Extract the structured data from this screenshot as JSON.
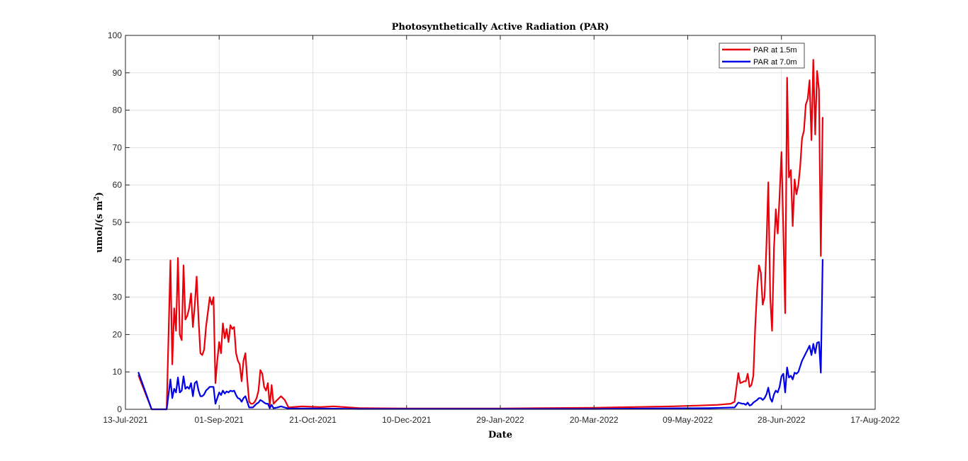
{
  "chart_data": {
    "type": "line",
    "title": "Photosynthetically Active Radiation (PAR)",
    "xlabel": "Date",
    "ylabel": "umol/(s m2)",
    "ylabel_main": "umol/(s m",
    "ylabel_sup": "2",
    "ylabel_close": ")",
    "xlim": [
      "2021-07-13",
      "2022-08-17"
    ],
    "ylim": [
      0,
      100
    ],
    "xticks": [
      "2021-07-13",
      "2021-09-01",
      "2021-10-21",
      "2021-12-10",
      "2022-01-29",
      "2022-03-20",
      "2022-05-09",
      "2022-06-28",
      "2022-08-17"
    ],
    "xtick_labels": [
      "13-Jul-2021",
      "01-Sep-2021",
      "21-Oct-2021",
      "10-Dec-2021",
      "29-Jan-2022",
      "20-Mar-2022",
      "09-May-2022",
      "28-Jun-2022",
      "17-Aug-2022"
    ],
    "yticks": [
      0,
      10,
      20,
      30,
      40,
      50,
      60,
      70,
      80,
      90,
      100
    ],
    "grid": true,
    "legend_position": "top-right",
    "series": [
      {
        "name": "PAR at 1.5m",
        "color": "#e8000b",
        "points": [
          [
            "2021-07-20",
            9
          ],
          [
            "2021-07-27",
            0
          ],
          [
            "2021-08-04",
            0
          ],
          [
            "2021-08-06",
            39.8
          ],
          [
            "2021-08-07",
            12
          ],
          [
            "2021-08-08",
            27
          ],
          [
            "2021-08-09",
            21
          ],
          [
            "2021-08-10",
            40.5
          ],
          [
            "2021-08-11",
            20
          ],
          [
            "2021-08-12",
            18.5
          ],
          [
            "2021-08-13",
            38.5
          ],
          [
            "2021-08-14",
            24
          ],
          [
            "2021-08-15",
            25
          ],
          [
            "2021-08-16",
            27
          ],
          [
            "2021-08-17",
            31
          ],
          [
            "2021-08-18",
            22
          ],
          [
            "2021-08-19",
            28
          ],
          [
            "2021-08-20",
            35.5
          ],
          [
            "2021-08-21",
            24
          ],
          [
            "2021-08-22",
            15
          ],
          [
            "2021-08-23",
            14.5
          ],
          [
            "2021-08-24",
            16
          ],
          [
            "2021-08-25",
            22
          ],
          [
            "2021-08-26",
            26
          ],
          [
            "2021-08-27",
            30
          ],
          [
            "2021-08-28",
            28
          ],
          [
            "2021-08-29",
            30
          ],
          [
            "2021-08-30",
            7
          ],
          [
            "2021-08-31",
            13
          ],
          [
            "2021-09-01",
            18
          ],
          [
            "2021-09-02",
            15
          ],
          [
            "2021-09-03",
            23
          ],
          [
            "2021-09-04",
            19
          ],
          [
            "2021-09-05",
            21.5
          ],
          [
            "2021-09-06",
            18
          ],
          [
            "2021-09-07",
            22.5
          ],
          [
            "2021-09-08",
            21.5
          ],
          [
            "2021-09-09",
            22
          ],
          [
            "2021-09-10",
            15
          ],
          [
            "2021-09-11",
            13
          ],
          [
            "2021-09-12",
            12
          ],
          [
            "2021-09-13",
            7.5
          ],
          [
            "2021-09-14",
            13
          ],
          [
            "2021-09-15",
            15
          ],
          [
            "2021-09-16",
            8
          ],
          [
            "2021-09-17",
            2
          ],
          [
            "2021-09-18",
            1.5
          ],
          [
            "2021-09-19",
            1.5
          ],
          [
            "2021-09-20",
            2
          ],
          [
            "2021-09-21",
            3
          ],
          [
            "2021-09-22",
            5
          ],
          [
            "2021-09-23",
            10.5
          ],
          [
            "2021-09-24",
            9.5
          ],
          [
            "2021-09-25",
            6
          ],
          [
            "2021-09-26",
            5
          ],
          [
            "2021-09-27",
            7
          ],
          [
            "2021-09-28",
            1
          ],
          [
            "2021-09-29",
            6.5
          ],
          [
            "2021-09-30",
            1.5
          ],
          [
            "2021-10-02",
            2.5
          ],
          [
            "2021-10-04",
            3.5
          ],
          [
            "2021-10-06",
            2.5
          ],
          [
            "2021-10-08",
            0.5
          ],
          [
            "2021-10-15",
            0.8
          ],
          [
            "2021-10-25",
            0.6
          ],
          [
            "2021-11-01",
            0.8
          ],
          [
            "2021-11-15",
            0.3
          ],
          [
            "2021-12-10",
            0.2
          ],
          [
            "2022-01-01",
            0.2
          ],
          [
            "2022-01-29",
            0.2
          ],
          [
            "2022-02-20",
            0.3
          ],
          [
            "2022-03-20",
            0.4
          ],
          [
            "2022-04-10",
            0.6
          ],
          [
            "2022-05-01",
            0.8
          ],
          [
            "2022-05-15",
            1.0
          ],
          [
            "2022-05-25",
            1.2
          ],
          [
            "2022-06-01",
            1.5
          ],
          [
            "2022-06-03",
            2
          ],
          [
            "2022-06-05",
            9.7
          ],
          [
            "2022-06-06",
            7
          ],
          [
            "2022-06-07",
            7.2
          ],
          [
            "2022-06-08",
            7.5
          ],
          [
            "2022-06-09",
            7.5
          ],
          [
            "2022-06-10",
            9.5
          ],
          [
            "2022-06-11",
            6
          ],
          [
            "2022-06-12",
            6.5
          ],
          [
            "2022-06-13",
            9
          ],
          [
            "2022-06-14",
            22
          ],
          [
            "2022-06-15",
            32
          ],
          [
            "2022-06-16",
            38.5
          ],
          [
            "2022-06-17",
            36.5
          ],
          [
            "2022-06-18",
            28
          ],
          [
            "2022-06-19",
            30
          ],
          [
            "2022-06-20",
            44
          ],
          [
            "2022-06-21",
            60.7
          ],
          [
            "2022-06-22",
            30
          ],
          [
            "2022-06-23",
            21
          ],
          [
            "2022-06-24",
            43
          ],
          [
            "2022-06-25",
            53.5
          ],
          [
            "2022-06-26",
            47
          ],
          [
            "2022-06-27",
            57
          ],
          [
            "2022-06-28",
            68.8
          ],
          [
            "2022-06-29",
            48
          ],
          [
            "2022-06-30",
            25.7
          ],
          [
            "2022-07-01",
            88.7
          ],
          [
            "2022-07-02",
            62
          ],
          [
            "2022-07-03",
            64
          ],
          [
            "2022-07-04",
            49
          ],
          [
            "2022-07-05",
            61.5
          ],
          [
            "2022-07-06",
            57.5
          ],
          [
            "2022-07-07",
            60
          ],
          [
            "2022-07-08",
            65
          ],
          [
            "2022-07-09",
            72.5
          ],
          [
            "2022-07-10",
            74.5
          ],
          [
            "2022-07-11",
            81.5
          ],
          [
            "2022-07-12",
            83
          ],
          [
            "2022-07-13",
            88
          ],
          [
            "2022-07-14",
            72
          ],
          [
            "2022-07-15",
            93.5
          ],
          [
            "2022-07-16",
            73.5
          ],
          [
            "2022-07-17",
            90.5
          ],
          [
            "2022-07-18",
            85.5
          ],
          [
            "2022-07-19",
            41
          ],
          [
            "2022-07-20",
            78
          ]
        ]
      },
      {
        "name": "PAR at 7.0m",
        "color": "#0000e8",
        "points": [
          [
            "2021-07-20",
            9.8
          ],
          [
            "2021-07-27",
            0
          ],
          [
            "2021-08-04",
            0
          ],
          [
            "2021-08-06",
            8
          ],
          [
            "2021-08-07",
            3
          ],
          [
            "2021-08-08",
            5.5
          ],
          [
            "2021-08-09",
            4.5
          ],
          [
            "2021-08-10",
            8.5
          ],
          [
            "2021-08-11",
            4.5
          ],
          [
            "2021-08-12",
            5
          ],
          [
            "2021-08-13",
            8.8
          ],
          [
            "2021-08-14",
            5.5
          ],
          [
            "2021-08-15",
            6
          ],
          [
            "2021-08-16",
            5.5
          ],
          [
            "2021-08-17",
            7
          ],
          [
            "2021-08-18",
            3.5
          ],
          [
            "2021-08-19",
            7
          ],
          [
            "2021-08-20",
            7.5
          ],
          [
            "2021-08-21",
            5
          ],
          [
            "2021-08-22",
            3.5
          ],
          [
            "2021-08-23",
            3.5
          ],
          [
            "2021-08-24",
            4
          ],
          [
            "2021-08-25",
            5
          ],
          [
            "2021-08-26",
            5.5
          ],
          [
            "2021-08-27",
            6
          ],
          [
            "2021-08-28",
            6
          ],
          [
            "2021-08-29",
            6
          ],
          [
            "2021-08-30",
            1.5
          ],
          [
            "2021-08-31",
            3
          ],
          [
            "2021-09-01",
            4.5
          ],
          [
            "2021-09-02",
            3.8
          ],
          [
            "2021-09-03",
            5
          ],
          [
            "2021-09-04",
            4.2
          ],
          [
            "2021-09-05",
            4.8
          ],
          [
            "2021-09-06",
            4.5
          ],
          [
            "2021-09-07",
            5
          ],
          [
            "2021-09-08",
            4.8
          ],
          [
            "2021-09-09",
            5
          ],
          [
            "2021-09-10",
            3.8
          ],
          [
            "2021-09-11",
            3
          ],
          [
            "2021-09-12",
            2.8
          ],
          [
            "2021-09-13",
            2
          ],
          [
            "2021-09-14",
            3
          ],
          [
            "2021-09-15",
            3.5
          ],
          [
            "2021-09-16",
            2
          ],
          [
            "2021-09-17",
            0.5
          ],
          [
            "2021-09-18",
            0.5
          ],
          [
            "2021-09-19",
            0.5
          ],
          [
            "2021-09-20",
            1
          ],
          [
            "2021-09-21",
            1.5
          ],
          [
            "2021-09-22",
            1.8
          ],
          [
            "2021-09-23",
            2.5
          ],
          [
            "2021-09-24",
            2.2
          ],
          [
            "2021-09-25",
            1.8
          ],
          [
            "2021-09-26",
            1.5
          ],
          [
            "2021-09-27",
            1.5
          ],
          [
            "2021-09-28",
            0.3
          ],
          [
            "2021-09-29",
            1.2
          ],
          [
            "2021-09-30",
            0.3
          ],
          [
            "2021-10-02",
            0.5
          ],
          [
            "2021-10-04",
            0.8
          ],
          [
            "2021-10-06",
            0.5
          ],
          [
            "2021-10-08",
            0.2
          ],
          [
            "2021-10-15",
            0.2
          ],
          [
            "2021-10-25",
            0.2
          ],
          [
            "2021-11-15",
            0.1
          ],
          [
            "2021-12-10",
            0.1
          ],
          [
            "2022-01-29",
            0.1
          ],
          [
            "2022-03-20",
            0.1
          ],
          [
            "2022-04-20",
            0.2
          ],
          [
            "2022-05-20",
            0.3
          ],
          [
            "2022-06-03",
            0.5
          ],
          [
            "2022-06-05",
            1.8
          ],
          [
            "2022-06-07",
            1.5
          ],
          [
            "2022-06-08",
            1.5
          ],
          [
            "2022-06-09",
            1.2
          ],
          [
            "2022-06-10",
            1.8
          ],
          [
            "2022-06-11",
            1
          ],
          [
            "2022-06-12",
            1.2
          ],
          [
            "2022-06-13",
            1.8
          ],
          [
            "2022-06-15",
            2.5
          ],
          [
            "2022-06-16",
            3
          ],
          [
            "2022-06-17",
            3
          ],
          [
            "2022-06-18",
            2.5
          ],
          [
            "2022-06-19",
            3
          ],
          [
            "2022-06-20",
            4
          ],
          [
            "2022-06-21",
            5.8
          ],
          [
            "2022-06-22",
            3
          ],
          [
            "2022-06-23",
            2
          ],
          [
            "2022-06-24",
            4
          ],
          [
            "2022-06-25",
            5
          ],
          [
            "2022-06-26",
            4.5
          ],
          [
            "2022-06-27",
            6
          ],
          [
            "2022-06-28",
            8.8
          ],
          [
            "2022-06-29",
            9.5
          ],
          [
            "2022-06-30",
            4.5
          ],
          [
            "2022-07-01",
            11.2
          ],
          [
            "2022-07-02",
            8.5
          ],
          [
            "2022-07-03",
            9
          ],
          [
            "2022-07-04",
            8
          ],
          [
            "2022-07-05",
            9.8
          ],
          [
            "2022-07-06",
            9.5
          ],
          [
            "2022-07-07",
            10
          ],
          [
            "2022-07-08",
            11.5
          ],
          [
            "2022-07-09",
            13
          ],
          [
            "2022-07-10",
            14
          ],
          [
            "2022-07-11",
            15
          ],
          [
            "2022-07-12",
            16
          ],
          [
            "2022-07-13",
            17
          ],
          [
            "2022-07-14",
            14.5
          ],
          [
            "2022-07-15",
            17.5
          ],
          [
            "2022-07-16",
            15
          ],
          [
            "2022-07-17",
            17.8
          ],
          [
            "2022-07-18",
            18
          ],
          [
            "2022-07-19",
            9.8
          ],
          [
            "2022-07-20",
            40
          ]
        ]
      }
    ]
  }
}
